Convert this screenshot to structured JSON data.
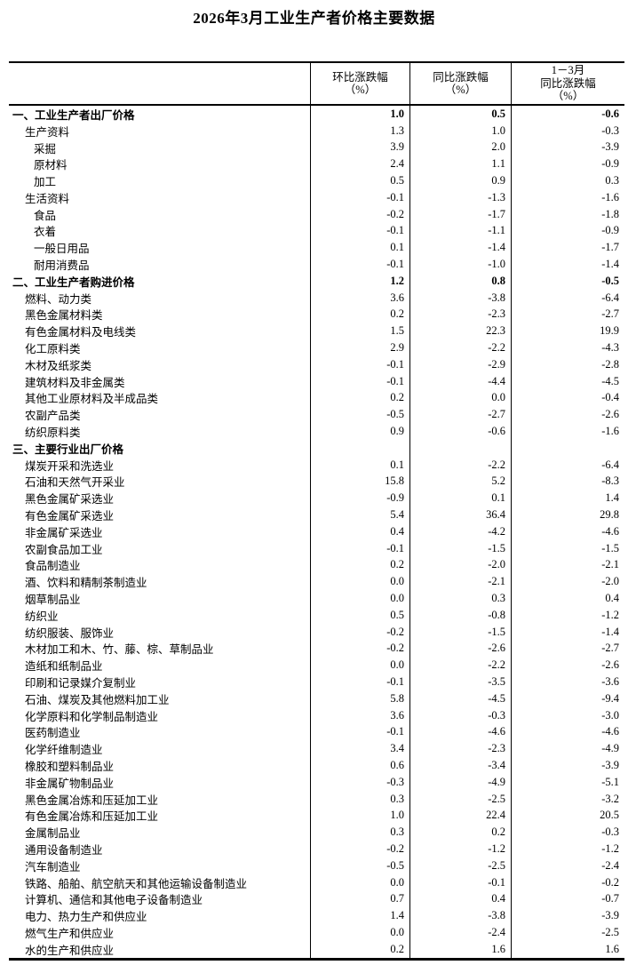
{
  "title": "2026年3月工业生产者价格主要数据",
  "colors": {
    "text": "#000000",
    "background": "#ffffff",
    "border": "#000000"
  },
  "table": {
    "columns": {
      "label": "",
      "mom": "环比涨跌幅\n（%）",
      "yoy": "同比涨跌幅\n（%）",
      "cum": "1－3月\n同比涨跌幅\n（%）"
    },
    "rows": [
      {
        "label": "一、工业生产者出厂价格",
        "indent": 0,
        "bold": true,
        "mom": "1.0",
        "yoy": "0.5",
        "cum": "-0.6"
      },
      {
        "label": "生产资料",
        "indent": 1,
        "bold": false,
        "mom": "1.3",
        "yoy": "1.0",
        "cum": "-0.3"
      },
      {
        "label": "采掘",
        "indent": 2,
        "bold": false,
        "mom": "3.9",
        "yoy": "2.0",
        "cum": "-3.9"
      },
      {
        "label": "原材料",
        "indent": 2,
        "bold": false,
        "mom": "2.4",
        "yoy": "1.1",
        "cum": "-0.9"
      },
      {
        "label": "加工",
        "indent": 2,
        "bold": false,
        "mom": "0.5",
        "yoy": "0.9",
        "cum": "0.3"
      },
      {
        "label": "生活资料",
        "indent": 1,
        "bold": false,
        "mom": "-0.1",
        "yoy": "-1.3",
        "cum": "-1.6"
      },
      {
        "label": "食品",
        "indent": 2,
        "bold": false,
        "mom": "-0.2",
        "yoy": "-1.7",
        "cum": "-1.8"
      },
      {
        "label": "衣着",
        "indent": 2,
        "bold": false,
        "mom": "-0.1",
        "yoy": "-1.1",
        "cum": "-0.9"
      },
      {
        "label": "一般日用品",
        "indent": 2,
        "bold": false,
        "mom": "0.1",
        "yoy": "-1.4",
        "cum": "-1.7"
      },
      {
        "label": "耐用消费品",
        "indent": 2,
        "bold": false,
        "mom": "-0.1",
        "yoy": "-1.0",
        "cum": "-1.4"
      },
      {
        "label": "二、工业生产者购进价格",
        "indent": 0,
        "bold": true,
        "mom": "1.2",
        "yoy": "0.8",
        "cum": "-0.5"
      },
      {
        "label": "燃料、动力类",
        "indent": 1,
        "bold": false,
        "mom": "3.6",
        "yoy": "-3.8",
        "cum": "-6.4"
      },
      {
        "label": "黑色金属材料类",
        "indent": 1,
        "bold": false,
        "mom": "0.2",
        "yoy": "-2.3",
        "cum": "-2.7"
      },
      {
        "label": "有色金属材料及电线类",
        "indent": 1,
        "bold": false,
        "mom": "1.5",
        "yoy": "22.3",
        "cum": "19.9"
      },
      {
        "label": "化工原料类",
        "indent": 1,
        "bold": false,
        "mom": "2.9",
        "yoy": "-2.2",
        "cum": "-4.3"
      },
      {
        "label": "木材及纸浆类",
        "indent": 1,
        "bold": false,
        "mom": "-0.1",
        "yoy": "-2.9",
        "cum": "-2.8"
      },
      {
        "label": "建筑材料及非金属类",
        "indent": 1,
        "bold": false,
        "mom": "-0.1",
        "yoy": "-4.4",
        "cum": "-4.5"
      },
      {
        "label": "其他工业原材料及半成品类",
        "indent": 1,
        "bold": false,
        "mom": "0.2",
        "yoy": "0.0",
        "cum": "-0.4"
      },
      {
        "label": "农副产品类",
        "indent": 1,
        "bold": false,
        "mom": "-0.5",
        "yoy": "-2.7",
        "cum": "-2.6"
      },
      {
        "label": "纺织原料类",
        "indent": 1,
        "bold": false,
        "mom": "0.9",
        "yoy": "-0.6",
        "cum": "-1.6"
      },
      {
        "label": "三、主要行业出厂价格",
        "indent": 0,
        "bold": true,
        "mom": "",
        "yoy": "",
        "cum": ""
      },
      {
        "label": "煤炭开采和洗选业",
        "indent": 1,
        "bold": false,
        "mom": "0.1",
        "yoy": "-2.2",
        "cum": "-6.4"
      },
      {
        "label": "石油和天然气开采业",
        "indent": 1,
        "bold": false,
        "mom": "15.8",
        "yoy": "5.2",
        "cum": "-8.3"
      },
      {
        "label": "黑色金属矿采选业",
        "indent": 1,
        "bold": false,
        "mom": "-0.9",
        "yoy": "0.1",
        "cum": "1.4"
      },
      {
        "label": "有色金属矿采选业",
        "indent": 1,
        "bold": false,
        "mom": "5.4",
        "yoy": "36.4",
        "cum": "29.8"
      },
      {
        "label": "非金属矿采选业",
        "indent": 1,
        "bold": false,
        "mom": "0.4",
        "yoy": "-4.2",
        "cum": "-4.6"
      },
      {
        "label": "农副食品加工业",
        "indent": 1,
        "bold": false,
        "mom": "-0.1",
        "yoy": "-1.5",
        "cum": "-1.5"
      },
      {
        "label": "食品制造业",
        "indent": 1,
        "bold": false,
        "mom": "0.2",
        "yoy": "-2.0",
        "cum": "-2.1"
      },
      {
        "label": "酒、饮料和精制茶制造业",
        "indent": 1,
        "bold": false,
        "mom": "0.0",
        "yoy": "-2.1",
        "cum": "-2.0"
      },
      {
        "label": "烟草制品业",
        "indent": 1,
        "bold": false,
        "mom": "0.0",
        "yoy": "0.3",
        "cum": "0.4"
      },
      {
        "label": "纺织业",
        "indent": 1,
        "bold": false,
        "mom": "0.5",
        "yoy": "-0.8",
        "cum": "-1.2"
      },
      {
        "label": "纺织服装、服饰业",
        "indent": 1,
        "bold": false,
        "mom": "-0.2",
        "yoy": "-1.5",
        "cum": "-1.4"
      },
      {
        "label": "木材加工和木、竹、藤、棕、草制品业",
        "indent": 1,
        "bold": false,
        "mom": "-0.2",
        "yoy": "-2.6",
        "cum": "-2.7"
      },
      {
        "label": "造纸和纸制品业",
        "indent": 1,
        "bold": false,
        "mom": "0.0",
        "yoy": "-2.2",
        "cum": "-2.6"
      },
      {
        "label": "印刷和记录媒介复制业",
        "indent": 1,
        "bold": false,
        "mom": "-0.1",
        "yoy": "-3.5",
        "cum": "-3.6"
      },
      {
        "label": "石油、煤炭及其他燃料加工业",
        "indent": 1,
        "bold": false,
        "mom": "5.8",
        "yoy": "-4.5",
        "cum": "-9.4"
      },
      {
        "label": "化学原料和化学制品制造业",
        "indent": 1,
        "bold": false,
        "mom": "3.6",
        "yoy": "-0.3",
        "cum": "-3.0"
      },
      {
        "label": "医药制造业",
        "indent": 1,
        "bold": false,
        "mom": "-0.1",
        "yoy": "-4.6",
        "cum": "-4.6"
      },
      {
        "label": "化学纤维制造业",
        "indent": 1,
        "bold": false,
        "mom": "3.4",
        "yoy": "-2.3",
        "cum": "-4.9"
      },
      {
        "label": "橡胶和塑料制品业",
        "indent": 1,
        "bold": false,
        "mom": "0.6",
        "yoy": "-3.4",
        "cum": "-3.9"
      },
      {
        "label": "非金属矿物制品业",
        "indent": 1,
        "bold": false,
        "mom": "-0.3",
        "yoy": "-4.9",
        "cum": "-5.1"
      },
      {
        "label": "黑色金属冶炼和压延加工业",
        "indent": 1,
        "bold": false,
        "mom": "0.3",
        "yoy": "-2.5",
        "cum": "-3.2"
      },
      {
        "label": "有色金属冶炼和压延加工业",
        "indent": 1,
        "bold": false,
        "mom": "1.0",
        "yoy": "22.4",
        "cum": "20.5"
      },
      {
        "label": "金属制品业",
        "indent": 1,
        "bold": false,
        "mom": "0.3",
        "yoy": "0.2",
        "cum": "-0.3"
      },
      {
        "label": "通用设备制造业",
        "indent": 1,
        "bold": false,
        "mom": "-0.2",
        "yoy": "-1.2",
        "cum": "-1.2"
      },
      {
        "label": "汽车制造业",
        "indent": 1,
        "bold": false,
        "mom": "-0.5",
        "yoy": "-2.5",
        "cum": "-2.4"
      },
      {
        "label": "铁路、船舶、航空航天和其他运输设备制造业",
        "indent": 1,
        "bold": false,
        "mom": "0.0",
        "yoy": "-0.1",
        "cum": "-0.2"
      },
      {
        "label": "计算机、通信和其他电子设备制造业",
        "indent": 1,
        "bold": false,
        "mom": "0.7",
        "yoy": "0.4",
        "cum": "-0.7"
      },
      {
        "label": "电力、热力生产和供应业",
        "indent": 1,
        "bold": false,
        "mom": "1.4",
        "yoy": "-3.8",
        "cum": "-3.9"
      },
      {
        "label": "燃气生产和供应业",
        "indent": 1,
        "bold": false,
        "mom": "0.0",
        "yoy": "-2.4",
        "cum": "-2.5"
      },
      {
        "label": "水的生产和供应业",
        "indent": 1,
        "bold": false,
        "mom": "0.2",
        "yoy": "1.6",
        "cum": "1.6"
      }
    ]
  }
}
